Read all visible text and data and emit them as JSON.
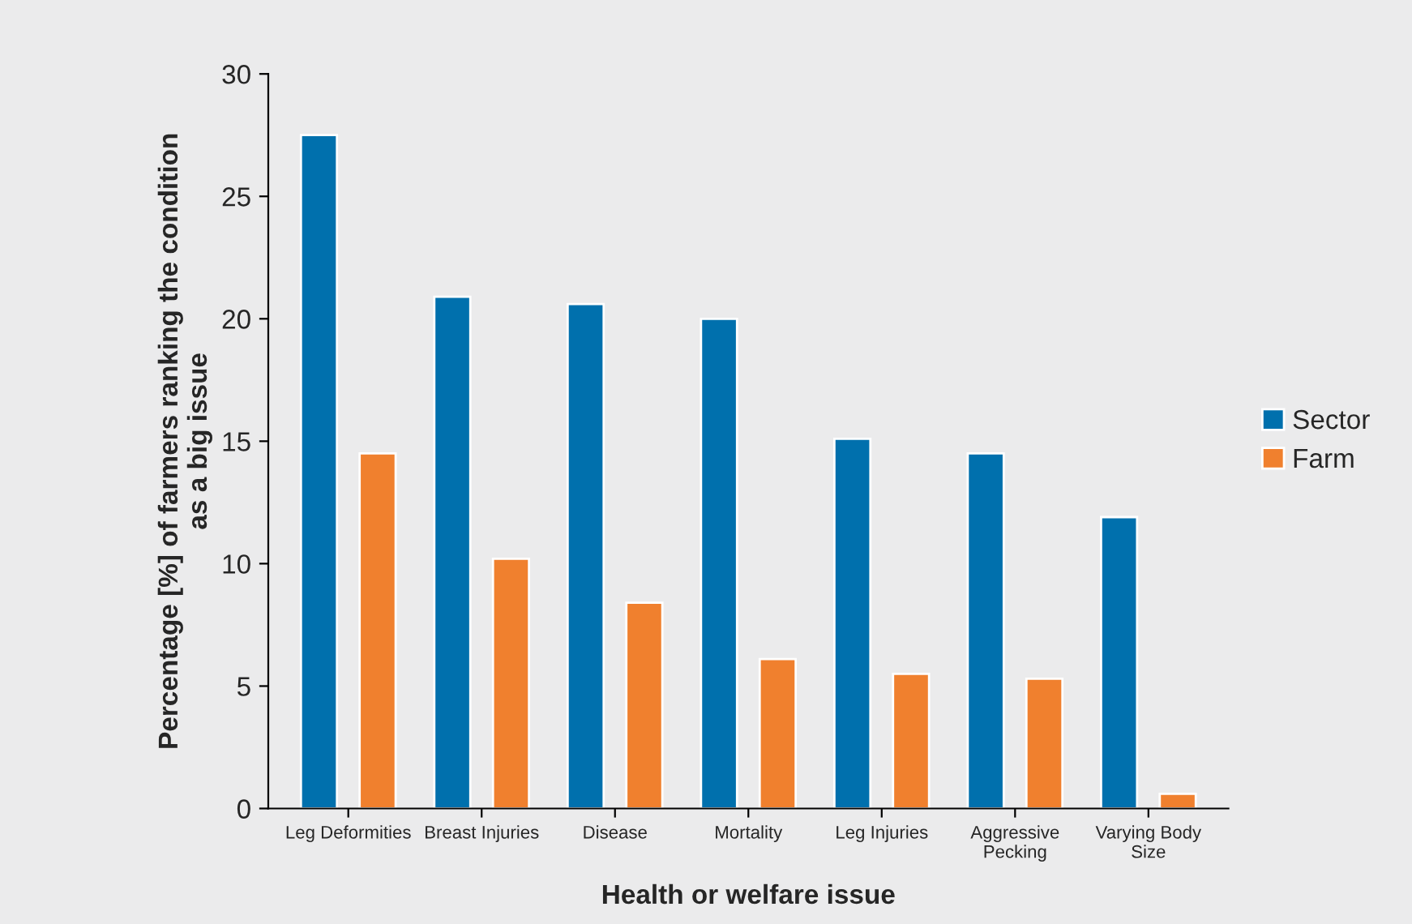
{
  "chart_data": {
    "type": "bar",
    "xlabel": "Health or welfare issue",
    "ylabel": "Percentage [%] of farmers ranking the condition\nas a big issue",
    "categories": [
      "Leg Deformities",
      "Breast Injuries",
      "Disease",
      "Mortality",
      "Leg Injuries",
      "Aggressive\nPecking",
      "Varying Body\nSize"
    ],
    "series": [
      {
        "name": "Sector",
        "color": "#0070ad",
        "values": [
          27.5,
          20.9,
          20.6,
          20.0,
          15.1,
          14.5,
          11.9
        ]
      },
      {
        "name": "Farm",
        "color": "#f0802e",
        "values": [
          14.5,
          10.2,
          8.4,
          6.1,
          5.5,
          5.3,
          0.6
        ]
      }
    ],
    "ylim": [
      0,
      30
    ],
    "yticks": [
      0,
      5,
      10,
      15,
      20,
      25,
      30
    ],
    "grid": false,
    "legend": "right"
  }
}
